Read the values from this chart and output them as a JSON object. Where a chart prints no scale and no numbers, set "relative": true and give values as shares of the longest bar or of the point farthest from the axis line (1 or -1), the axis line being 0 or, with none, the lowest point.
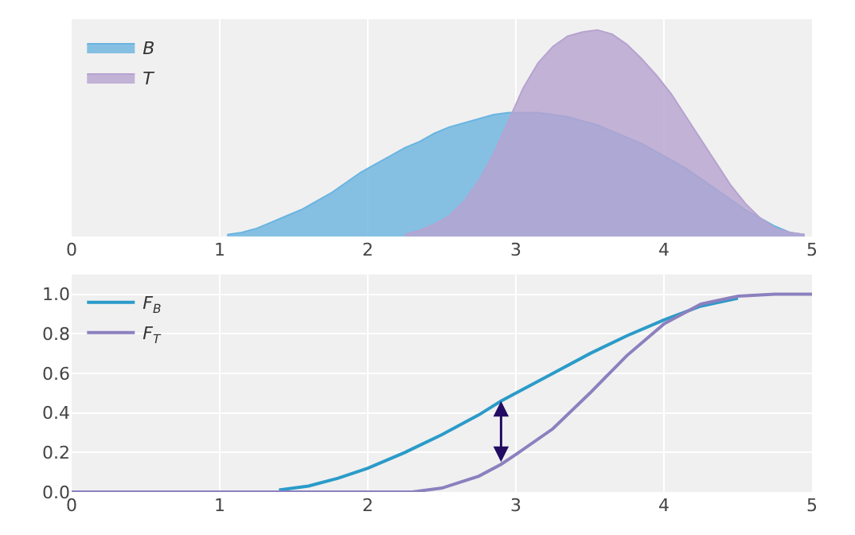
{
  "chart_data": [
    {
      "type": "area",
      "relative": true,
      "series": [
        {
          "name": "B",
          "color": "#6ab4e0",
          "x": [
            1.05,
            1.15,
            1.25,
            1.35,
            1.45,
            1.55,
            1.65,
            1.75,
            1.85,
            1.95,
            2.05,
            2.15,
            2.25,
            2.35,
            2.45,
            2.55,
            2.65,
            2.75,
            2.85,
            2.95,
            3.05,
            3.15,
            3.25,
            3.35,
            3.45,
            3.55,
            3.65,
            3.75,
            3.85,
            3.95,
            4.05,
            4.15,
            4.25,
            4.35,
            4.45,
            4.55,
            4.65,
            4.75,
            4.85,
            4.95
          ],
          "values": [
            0.01,
            0.02,
            0.04,
            0.07,
            0.1,
            0.13,
            0.17,
            0.21,
            0.26,
            0.31,
            0.35,
            0.39,
            0.43,
            0.46,
            0.5,
            0.53,
            0.55,
            0.57,
            0.59,
            0.6,
            0.6,
            0.6,
            0.59,
            0.58,
            0.56,
            0.54,
            0.51,
            0.48,
            0.45,
            0.41,
            0.37,
            0.33,
            0.28,
            0.23,
            0.18,
            0.13,
            0.09,
            0.05,
            0.02,
            0.01
          ]
        },
        {
          "name": "T",
          "color": "#b6a3d0",
          "x": [
            2.25,
            2.35,
            2.45,
            2.55,
            2.65,
            2.75,
            2.85,
            2.95,
            3.05,
            3.15,
            3.25,
            3.35,
            3.45,
            3.55,
            3.65,
            3.75,
            3.85,
            3.95,
            4.05,
            4.15,
            4.25,
            4.35,
            4.45,
            4.55,
            4.65,
            4.75,
            4.85,
            4.95
          ],
          "values": [
            0.01,
            0.03,
            0.06,
            0.1,
            0.17,
            0.27,
            0.4,
            0.56,
            0.72,
            0.84,
            0.92,
            0.97,
            0.99,
            1.0,
            0.98,
            0.93,
            0.86,
            0.78,
            0.69,
            0.58,
            0.47,
            0.36,
            0.25,
            0.16,
            0.09,
            0.04,
            0.02,
            0.01
          ]
        }
      ],
      "xlim": [
        0,
        5
      ],
      "xticks": [
        0,
        1,
        2,
        3,
        4,
        5
      ],
      "grid": "x",
      "legend": "top left"
    },
    {
      "type": "line",
      "series": [
        {
          "name": "F$_{B}$",
          "color": "#2b9bc9",
          "x": [
            1.4,
            1.6,
            1.8,
            2.0,
            2.25,
            2.5,
            2.75,
            2.9,
            3.0,
            3.25,
            3.5,
            3.75,
            4.0,
            4.25,
            4.5
          ],
          "values": [
            0.01,
            0.03,
            0.07,
            0.12,
            0.2,
            0.29,
            0.39,
            0.46,
            0.5,
            0.6,
            0.7,
            0.79,
            0.87,
            0.94,
            0.98
          ]
        },
        {
          "name": "F$_{T}$",
          "color": "#8c80bf",
          "x": [
            0,
            0.5,
            1.0,
            1.5,
            2.0,
            2.3,
            2.5,
            2.75,
            2.9,
            3.0,
            3.25,
            3.5,
            3.75,
            4.0,
            4.25,
            4.5,
            4.75,
            5.0
          ],
          "values": [
            0,
            0,
            0,
            0,
            0,
            0,
            0.02,
            0.08,
            0.14,
            0.19,
            0.32,
            0.5,
            0.69,
            0.85,
            0.95,
            0.99,
            1.0,
            1.0
          ]
        }
      ],
      "xlim": [
        0,
        5
      ],
      "xticks": [
        0,
        1,
        2,
        3,
        4,
        5
      ],
      "ylim": [
        0,
        1.1
      ],
      "yticks": [
        {
          "value": 0,
          "label": "0.0"
        },
        {
          "value": 0.2,
          "label": "0.2"
        },
        {
          "value": 0.4,
          "label": "0.4"
        },
        {
          "value": 0.6,
          "label": "0.6"
        },
        {
          "value": 0.8,
          "label": "0.8"
        },
        {
          "value": 1,
          "label": "1.0"
        }
      ],
      "grid": true,
      "legend": "top left"
    }
  ]
}
